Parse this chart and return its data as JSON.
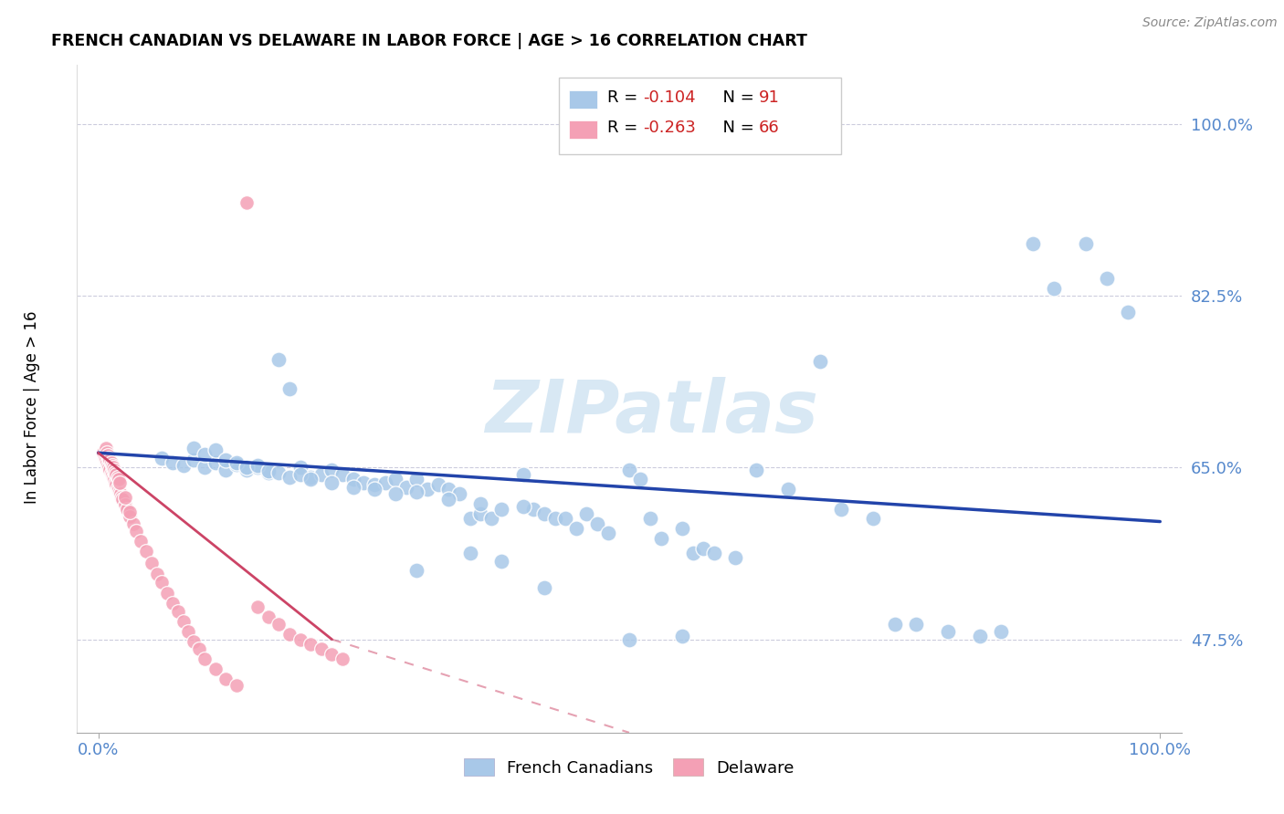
{
  "title": "FRENCH CANADIAN VS DELAWARE IN LABOR FORCE | AGE > 16 CORRELATION CHART",
  "source": "Source: ZipAtlas.com",
  "ylabel": "In Labor Force | Age > 16",
  "color_blue": "#A8C8E8",
  "color_pink": "#F4A0B5",
  "color_trendline_blue": "#2244AA",
  "color_trendline_pink": "#CC4466",
  "color_trendline_dashed": "#E0BBCC",
  "watermark_color": "#D8E8F4",
  "grid_color": "#CCCCDD",
  "tick_color": "#5588CC",
  "xlim": [
    -0.02,
    1.02
  ],
  "ylim": [
    0.38,
    1.06
  ],
  "yticks": [
    0.475,
    0.65,
    0.825,
    1.0
  ],
  "ytick_labels": [
    "47.5%",
    "65.0%",
    "82.5%",
    "100.0%"
  ],
  "xticks": [
    0.0,
    1.0
  ],
  "xtick_labels": [
    "0.0%",
    "100.0%"
  ],
  "blue_trend_x0": 0.0,
  "blue_trend_x1": 1.0,
  "blue_trend_y0": 0.665,
  "blue_trend_y1": 0.595,
  "pink_trend_x0": 0.0,
  "pink_trend_x1": 0.22,
  "pink_trend_y0": 0.665,
  "pink_trend_y1": 0.475,
  "dashed_trend_x0": 0.22,
  "dashed_trend_x1": 0.5,
  "dashed_trend_y0": 0.475,
  "dashed_trend_y1": 0.38,
  "blue_x": [
    0.06,
    0.07,
    0.08,
    0.09,
    0.1,
    0.11,
    0.12,
    0.13,
    0.14,
    0.15,
    0.16,
    0.17,
    0.18,
    0.19,
    0.2,
    0.21,
    0.22,
    0.23,
    0.24,
    0.25,
    0.26,
    0.27,
    0.28,
    0.29,
    0.3,
    0.31,
    0.32,
    0.33,
    0.34,
    0.35,
    0.36,
    0.37,
    0.38,
    0.4,
    0.41,
    0.42,
    0.43,
    0.44,
    0.45,
    0.46,
    0.47,
    0.48,
    0.5,
    0.51,
    0.52,
    0.53,
    0.55,
    0.56,
    0.57,
    0.58,
    0.6,
    0.62,
    0.65,
    0.68,
    0.7,
    0.73,
    0.75,
    0.77,
    0.8,
    0.83,
    0.85,
    0.88,
    0.9,
    0.93,
    0.95,
    0.97,
    0.09,
    0.1,
    0.11,
    0.12,
    0.13,
    0.14,
    0.15,
    0.16,
    0.17,
    0.18,
    0.19,
    0.2,
    0.22,
    0.24,
    0.26,
    0.28,
    0.3,
    0.33,
    0.36,
    0.4,
    0.3,
    0.35,
    0.38,
    0.42,
    0.5,
    0.55
  ],
  "blue_y": [
    0.66,
    0.655,
    0.652,
    0.658,
    0.65,
    0.655,
    0.648,
    0.653,
    0.648,
    0.65,
    0.645,
    0.76,
    0.73,
    0.65,
    0.64,
    0.643,
    0.648,
    0.643,
    0.638,
    0.635,
    0.633,
    0.635,
    0.638,
    0.63,
    0.638,
    0.628,
    0.633,
    0.628,
    0.623,
    0.598,
    0.603,
    0.598,
    0.608,
    0.643,
    0.608,
    0.603,
    0.598,
    0.598,
    0.588,
    0.603,
    0.593,
    0.583,
    0.648,
    0.638,
    0.598,
    0.578,
    0.588,
    0.563,
    0.568,
    0.563,
    0.558,
    0.648,
    0.628,
    0.758,
    0.608,
    0.598,
    0.49,
    0.49,
    0.483,
    0.478,
    0.483,
    0.878,
    0.833,
    0.878,
    0.843,
    0.808,
    0.67,
    0.663,
    0.668,
    0.658,
    0.655,
    0.65,
    0.652,
    0.647,
    0.645,
    0.64,
    0.643,
    0.638,
    0.635,
    0.63,
    0.628,
    0.623,
    0.625,
    0.618,
    0.613,
    0.61,
    0.545,
    0.563,
    0.555,
    0.528,
    0.475,
    0.478
  ],
  "pink_x": [
    0.005,
    0.006,
    0.007,
    0.008,
    0.009,
    0.01,
    0.011,
    0.012,
    0.013,
    0.014,
    0.015,
    0.016,
    0.017,
    0.018,
    0.019,
    0.02,
    0.021,
    0.022,
    0.023,
    0.025,
    0.027,
    0.03,
    0.033,
    0.036,
    0.04,
    0.045,
    0.05,
    0.055,
    0.06,
    0.065,
    0.07,
    0.075,
    0.08,
    0.085,
    0.09,
    0.095,
    0.1,
    0.11,
    0.12,
    0.13,
    0.14,
    0.15,
    0.16,
    0.17,
    0.18,
    0.19,
    0.2,
    0.21,
    0.22,
    0.23,
    0.007,
    0.008,
    0.009,
    0.01,
    0.011,
    0.012,
    0.013,
    0.014,
    0.015,
    0.016,
    0.017,
    0.018,
    0.019,
    0.02,
    0.025,
    0.03
  ],
  "pink_y": [
    0.665,
    0.66,
    0.658,
    0.655,
    0.652,
    0.65,
    0.648,
    0.645,
    0.643,
    0.64,
    0.638,
    0.635,
    0.633,
    0.63,
    0.628,
    0.625,
    0.623,
    0.62,
    0.618,
    0.612,
    0.608,
    0.6,
    0.593,
    0.585,
    0.575,
    0.565,
    0.553,
    0.542,
    0.533,
    0.522,
    0.512,
    0.503,
    0.493,
    0.483,
    0.473,
    0.465,
    0.455,
    0.445,
    0.435,
    0.428,
    0.92,
    0.508,
    0.498,
    0.49,
    0.48,
    0.475,
    0.47,
    0.465,
    0.46,
    0.455,
    0.67,
    0.665,
    0.662,
    0.66,
    0.658,
    0.655,
    0.652,
    0.65,
    0.648,
    0.645,
    0.643,
    0.64,
    0.638,
    0.635,
    0.62,
    0.605
  ]
}
